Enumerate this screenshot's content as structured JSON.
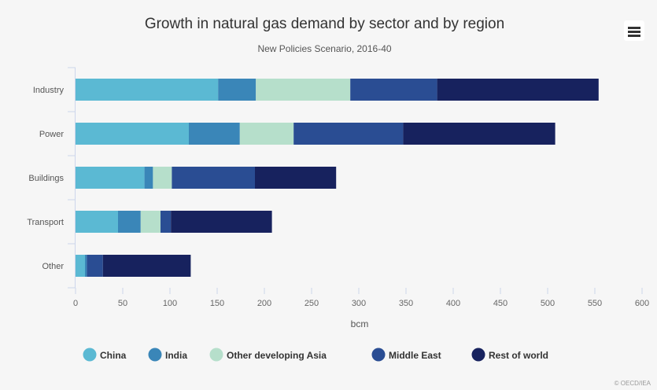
{
  "title": "Growth in natural gas demand by sector and by region",
  "subtitle": "New Policies Scenario, 2016-40",
  "credits": "© OECD/IEA",
  "chart_data": {
    "type": "bar",
    "orientation": "horizontal",
    "stacked": true,
    "categories": [
      "Industry",
      "Power",
      "Buildings",
      "Transport",
      "Other"
    ],
    "xlabel": "bcm",
    "xlim": [
      0,
      600
    ],
    "xticks": [
      0,
      50,
      100,
      150,
      200,
      250,
      300,
      350,
      400,
      450,
      500,
      550,
      600
    ],
    "grid": false,
    "legend_position": "bottom",
    "series": [
      {
        "name": "China",
        "color": "#5bb9d3",
        "values": [
          151,
          120,
          73,
          45,
          10
        ]
      },
      {
        "name": "India",
        "color": "#3a86b8",
        "values": [
          40,
          54,
          9,
          24,
          2
        ]
      },
      {
        "name": "Other developing Asia",
        "color": "#b6dfcb",
        "values": [
          100,
          57,
          20,
          21,
          0
        ]
      },
      {
        "name": "Middle East",
        "color": "#2a4d93",
        "values": [
          92,
          116,
          88,
          11,
          17
        ]
      },
      {
        "name": "Rest of world",
        "color": "#17225e",
        "values": [
          171,
          161,
          86,
          107,
          93
        ]
      }
    ]
  }
}
